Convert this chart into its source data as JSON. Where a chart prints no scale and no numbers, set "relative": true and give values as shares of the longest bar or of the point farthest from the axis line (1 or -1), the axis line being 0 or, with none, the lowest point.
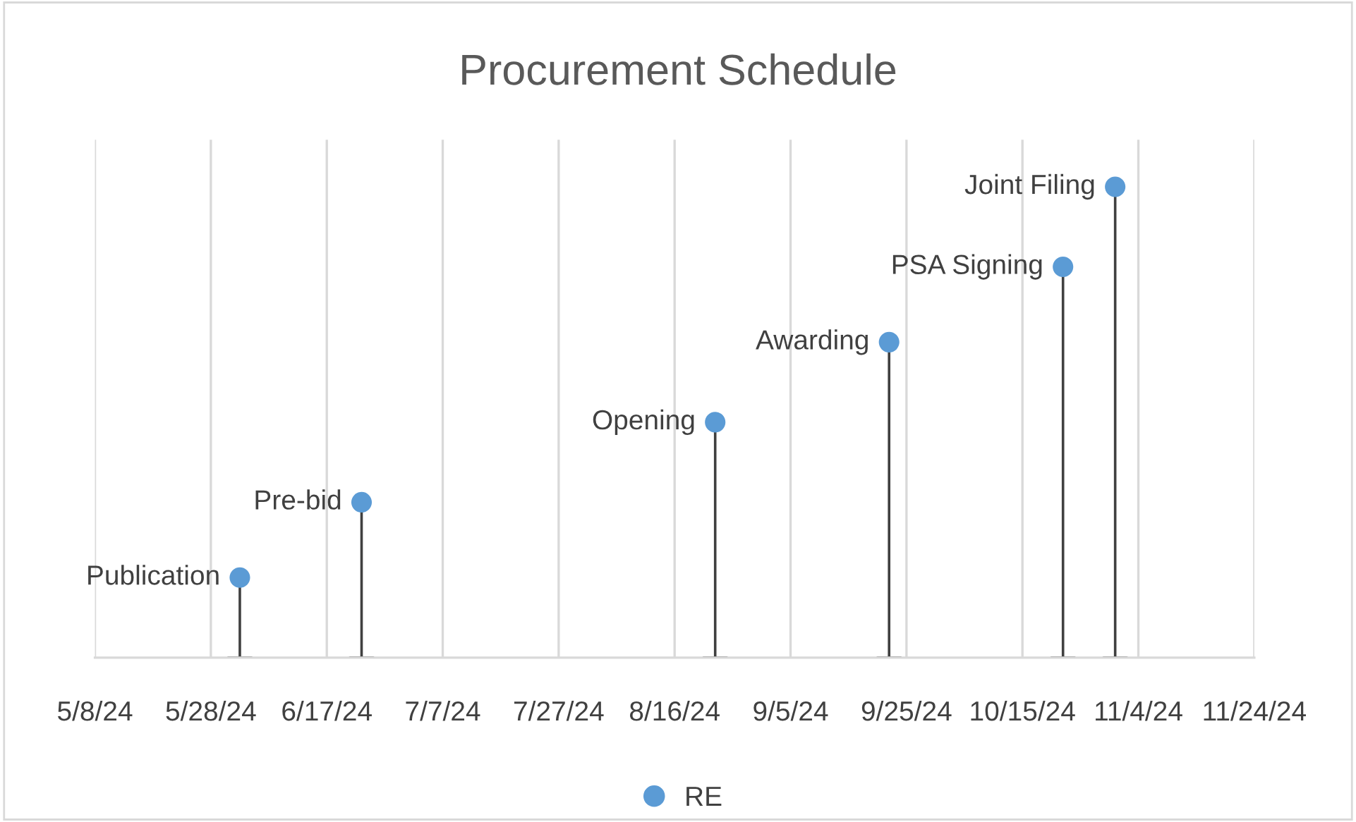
{
  "chart_data": {
    "type": "lollipop",
    "title": "Procurement Schedule",
    "relative": true,
    "x": [
      "2024-06-02",
      "2024-06-23",
      "2024-08-23",
      "2024-09-22",
      "2024-10-22",
      "2024-10-31"
    ],
    "series": [
      {
        "name": "RE",
        "color": "#5b9bd5",
        "values": [
          0.17,
          0.33,
          0.5,
          0.67,
          0.83,
          1
        ]
      }
    ],
    "annotations": [
      {
        "text": "Publication",
        "x": "2024-06-02",
        "y": 0.17
      },
      {
        "text": "Pre-bid",
        "x": "2024-06-23",
        "y": 0.33
      },
      {
        "text": "Opening",
        "x": "2024-08-23",
        "y": 0.5
      },
      {
        "text": "Awarding",
        "x": "2024-09-22",
        "y": 0.67
      },
      {
        "text": "PSA Signing",
        "x": "2024-10-22",
        "y": 0.83
      },
      {
        "text": "Joint Filing",
        "x": "2024-10-31",
        "y": 1
      }
    ],
    "xlim": [
      "2024-05-08",
      "2024-11-24"
    ],
    "xticks": [
      {
        "value": "2024-05-08",
        "label": "5/8/24"
      },
      {
        "value": "2024-05-28",
        "label": "5/28/24"
      },
      {
        "value": "2024-06-17",
        "label": "6/17/24"
      },
      {
        "value": "2024-07-07",
        "label": "7/7/24"
      },
      {
        "value": "2024-07-27",
        "label": "7/27/24"
      },
      {
        "value": "2024-08-16",
        "label": "8/16/24"
      },
      {
        "value": "2024-09-05",
        "label": "9/5/24"
      },
      {
        "value": "2024-09-25",
        "label": "9/25/24"
      },
      {
        "value": "2024-10-15",
        "label": "10/15/24"
      },
      {
        "value": "2024-11-04",
        "label": "11/4/24"
      },
      {
        "value": "2024-11-24",
        "label": "11/24/24"
      }
    ],
    "grid": "x",
    "legend": "bottom",
    "marker": "circle"
  }
}
